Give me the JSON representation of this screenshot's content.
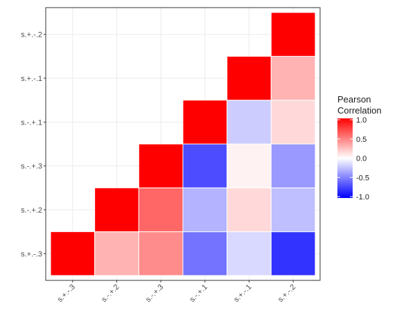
{
  "chart_data": {
    "type": "heatmap",
    "x_categories": [
      "s.+.-.3",
      "s.-.+.2",
      "s.-.+.3",
      "s.-.+.1",
      "s.+.-.1",
      "s.+.-.2"
    ],
    "y_categories": [
      "s.+.-.3",
      "s.-.+.2",
      "s.-.+.3",
      "s.-.+.1",
      "s.+.-.1",
      "s.+.-.2"
    ],
    "cells": [
      {
        "x": "s.+.-.3",
        "y": "s.+.-.3",
        "value": 1.0
      },
      {
        "x": "s.-.+.2",
        "y": "s.+.-.3",
        "value": 0.3
      },
      {
        "x": "s.-.+.3",
        "y": "s.+.-.3",
        "value": 0.45
      },
      {
        "x": "s.-.+.1",
        "y": "s.+.-.3",
        "value": -0.55
      },
      {
        "x": "s.+.-.1",
        "y": "s.+.-.3",
        "value": -0.15
      },
      {
        "x": "s.+.-.2",
        "y": "s.+.-.3",
        "value": -0.8
      },
      {
        "x": "s.-.+.2",
        "y": "s.-.+.2",
        "value": 1.0
      },
      {
        "x": "s.-.+.3",
        "y": "s.-.+.2",
        "value": 0.6
      },
      {
        "x": "s.-.+.1",
        "y": "s.-.+.2",
        "value": -0.3
      },
      {
        "x": "s.+.-.1",
        "y": "s.-.+.2",
        "value": 0.15
      },
      {
        "x": "s.+.-.2",
        "y": "s.-.+.2",
        "value": -0.25
      },
      {
        "x": "s.-.+.3",
        "y": "s.-.+.3",
        "value": 1.0
      },
      {
        "x": "s.-.+.1",
        "y": "s.-.+.3",
        "value": -0.7
      },
      {
        "x": "s.+.-.1",
        "y": "s.-.+.3",
        "value": 0.05
      },
      {
        "x": "s.+.-.2",
        "y": "s.-.+.3",
        "value": -0.4
      },
      {
        "x": "s.-.+.1",
        "y": "s.-.+.1",
        "value": 1.0
      },
      {
        "x": "s.+.-.1",
        "y": "s.-.+.1",
        "value": -0.2
      },
      {
        "x": "s.+.-.2",
        "y": "s.-.+.1",
        "value": 0.15
      },
      {
        "x": "s.+.-.1",
        "y": "s.+.-.1",
        "value": 1.0
      },
      {
        "x": "s.+.-.2",
        "y": "s.+.-.1",
        "value": 0.3
      },
      {
        "x": "s.+.-.2",
        "y": "s.+.-.2",
        "value": 1.0
      }
    ],
    "legend": {
      "title_lines": [
        "Pearson",
        "Correlation"
      ],
      "ticks": [
        1.0,
        0.5,
        0.0,
        -0.5,
        -1.0
      ],
      "tick_labels": [
        "1.0",
        "0.5",
        "0.0",
        "-0.5",
        "-1.0"
      ],
      "range": [
        -1.0,
        1.0
      ],
      "placement": "right"
    },
    "colors": {
      "low": "#0000ff",
      "mid": "#ffffff",
      "high": "#ff0000",
      "panel_border": "#333333",
      "grid": "#ebebeb",
      "tile_border": "#ffffff"
    },
    "grid": true,
    "xlabel": "",
    "ylabel": ""
  }
}
